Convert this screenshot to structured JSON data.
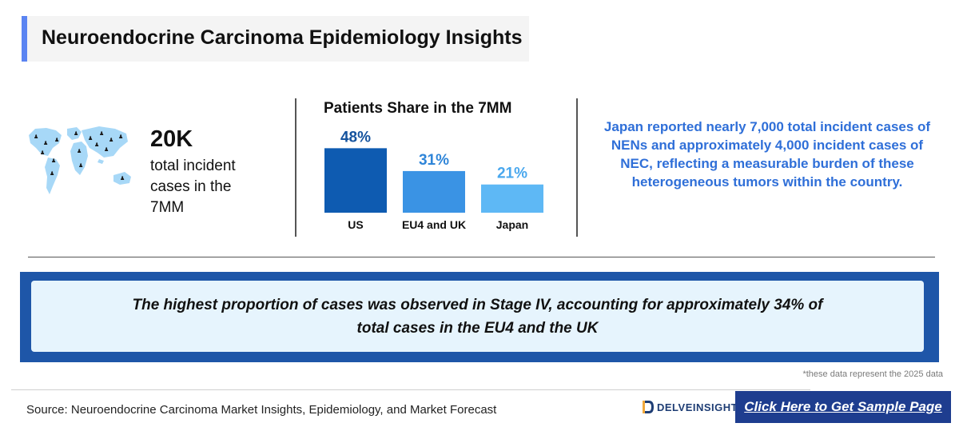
{
  "header": {
    "title": "Neuroendocrine Carcinoma Epidemiology Insights"
  },
  "stat": {
    "value": "20K",
    "description": "total incident cases in the 7MM"
  },
  "chart_data": {
    "type": "bar",
    "title": "Patients Share in the 7MM",
    "categories": [
      "US",
      "EU4 and UK",
      "Japan"
    ],
    "values": [
      48,
      31,
      21
    ],
    "value_labels": [
      "48%",
      "31%",
      "21%"
    ],
    "colors": [
      "#0e5bb1",
      "#3a93e4",
      "#5eb8f5"
    ],
    "label_colors": [
      "#15539e",
      "#2f85d8",
      "#4aa8ee"
    ],
    "xlabel": "",
    "ylabel": "",
    "ylim": [
      0,
      50
    ],
    "grid": false,
    "legend": "none"
  },
  "insight": {
    "text": "Japan reported nearly 7,000 total incident cases of NENs and approximately 4,000 incident cases of NEC, reflecting a measurable burden of these heterogeneous tumors within the country."
  },
  "highlight": {
    "text": "The highest proportion of cases was observed in Stage IV, accounting for approximately 34% of total cases in the EU4 and the UK"
  },
  "footnote": "*these data represent the 2025 data",
  "footer": {
    "source": "Source: Neuroendocrine Carcinoma Market Insights, Epidemiology, and Market Forecast",
    "logo_text": "DELVEINSIGHT",
    "cta_label": "Click Here to Get Sample Page"
  },
  "colors": {
    "accent": "#5b84f2",
    "insight_text": "#2f6fd8",
    "banner_frame": "#1e56a8",
    "banner_fill": "#e6f4fd",
    "cta_bg": "#1e3d8f",
    "map_fill": "#a7d8f7",
    "map_pin": "#1a1a1a"
  },
  "icons": {
    "map": "world-map-icon",
    "pin": "person-pin-icon",
    "logo": "delveinsight-logo-icon"
  }
}
